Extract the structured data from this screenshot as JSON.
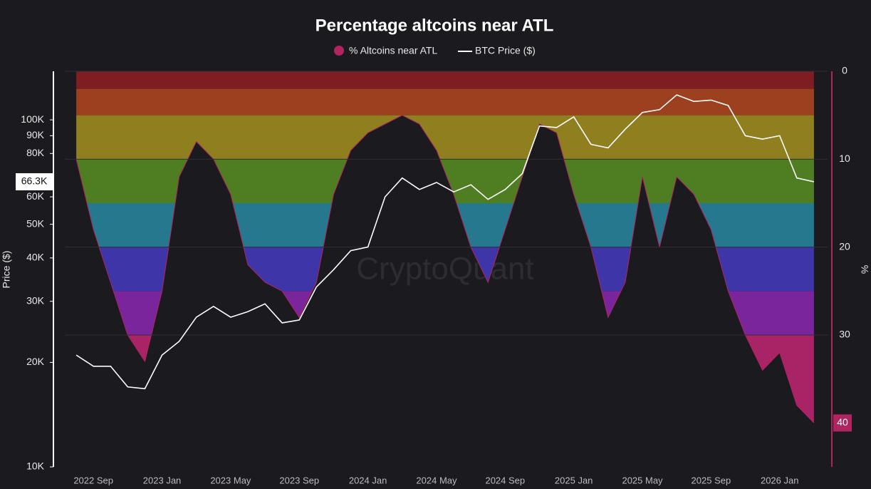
{
  "chart_data": {
    "type": "line",
    "title": "Percentage altcoins near ATL",
    "watermark": "CryptoQuant",
    "y_label": "Price ($)",
    "y2_label": "%",
    "y_scale": "log",
    "y2_inverted": true,
    "x": [
      "2022 Aug",
      "2022 Sep",
      "2022 Oct",
      "2022 Nov",
      "2022 Dec",
      "2023 Jan",
      "2023 Feb",
      "2023 Mar",
      "2023 Apr",
      "2023 May",
      "2023 Jun",
      "2023 Jul",
      "2023 Aug",
      "2023 Sep",
      "2023 Oct",
      "2023 Nov",
      "2023 Dec",
      "2024 Jan",
      "2024 Feb",
      "2024 Mar",
      "2024 Apr",
      "2024 May",
      "2024 Jun",
      "2024 Jul",
      "2024 Aug",
      "2024 Sep",
      "2024 Oct",
      "2024 Nov",
      "2024 Dec",
      "2025 Jan",
      "2025 Feb",
      "2025 Mar",
      "2025 Apr",
      "2025 May",
      "2025 Jun",
      "2025 Jul",
      "2025 Aug",
      "2025 Sep",
      "2025 Oct",
      "2025 Nov",
      "2025 Dec",
      "2026 Jan",
      "2026 Feb",
      "2026 Mar"
    ],
    "series": [
      {
        "name": "% Altcoins near ATL",
        "color": "#b0245f",
        "axis": "y2",
        "values": [
          10,
          18,
          24,
          30,
          33,
          25,
          12,
          8,
          10,
          14,
          22,
          24,
          25,
          28,
          24,
          14,
          9,
          7,
          6,
          5,
          6,
          9,
          14,
          20,
          24,
          18,
          12,
          6,
          7,
          14,
          20,
          28,
          24,
          12,
          20,
          12,
          14,
          18,
          25,
          30,
          34,
          32,
          38,
          40
        ]
      },
      {
        "name": "BTC Price ($)",
        "color": "#ffffff",
        "values": [
          21000,
          19500,
          19500,
          17000,
          16800,
          21000,
          23000,
          27000,
          29000,
          27000,
          28000,
          29500,
          26000,
          26500,
          33000,
          37000,
          42000,
          43000,
          60000,
          68000,
          63000,
          66000,
          62000,
          65000,
          59000,
          63000,
          70000,
          96000,
          95000,
          102000,
          85000,
          83000,
          94000,
          105000,
          107000,
          118000,
          113000,
          114000,
          110000,
          90000,
          88000,
          90000,
          68000,
          66300
        ]
      }
    ],
    "zones": [
      {
        "from": 0,
        "to": 2,
        "color": "#7e1e22"
      },
      {
        "from": 2,
        "to": 5,
        "color": "#9c401f"
      },
      {
        "from": 5,
        "to": 10,
        "color": "#8f7f1f"
      },
      {
        "from": 10,
        "to": 15,
        "color": "#4f7d22"
      },
      {
        "from": 15,
        "to": 20,
        "color": "#26788f"
      },
      {
        "from": 20,
        "to": 25,
        "color": "#3d35a8"
      },
      {
        "from": 25,
        "to": 30,
        "color": "#7a259c"
      },
      {
        "from": 30,
        "to": 45,
        "color": "#a82466"
      }
    ],
    "xlim": [
      "2022 Jul",
      "2026 Apr"
    ],
    "xticks": [
      "2022 Sep",
      "2023 Jan",
      "2023 May",
      "2023 Sep",
      "2024 Jan",
      "2024 May",
      "2024 Sep",
      "2025 Jan",
      "2025 May",
      "2025 Sep",
      "2026 Jan"
    ],
    "ylim": [
      10000,
      138000
    ],
    "yticks": [
      {
        "value": 10000,
        "label": "10K"
      },
      {
        "value": 20000,
        "label": "20K"
      },
      {
        "value": 30000,
        "label": "30K"
      },
      {
        "value": 40000,
        "label": "40K"
      },
      {
        "value": 50000,
        "label": "50K"
      },
      {
        "value": 60000,
        "label": "60K"
      },
      {
        "value": 80000,
        "label": "80K"
      },
      {
        "value": 90000,
        "label": "90K"
      },
      {
        "value": 100000,
        "label": "100K"
      }
    ],
    "y2lim": [
      0,
      45
    ],
    "y2ticks": [
      0,
      10,
      20,
      30
    ],
    "y_marker": {
      "value": 66300,
      "label": "66.3K"
    },
    "y2_marker": 40,
    "grid": true
  }
}
